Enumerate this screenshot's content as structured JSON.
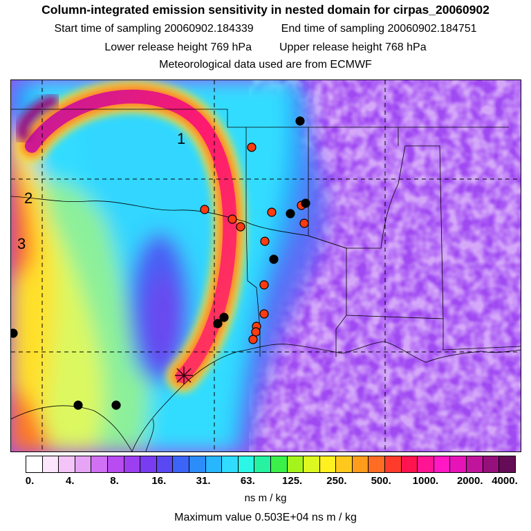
{
  "header": {
    "title": "Column-integrated emission sensitivity in nested domain for cirpas_20060902",
    "start_label": "Start time of sampling 20060902.184339",
    "end_label": "End time of sampling 20060902.184751",
    "lower_label": "Lower release height  769 hPa",
    "upper_label": "Upper release height  768 hPa",
    "met_label": "Meteorological data used are from ECMWF"
  },
  "map": {
    "labels": {
      "one": "1",
      "two": "2",
      "three": "3"
    },
    "colors": {
      "background_low": "#a44cf0",
      "plume_core": "#ff1a6e",
      "plume_edge": "#ffee00",
      "cyan_zone": "#30e8ff",
      "blue_trough": "#5a4cf2",
      "yellow_zone": "#e8ff60",
      "dot_red": "#ff3b10",
      "dot_black": "#000000"
    }
  },
  "colorbar": {
    "colors": [
      "#ffffff",
      "#fbe6fb",
      "#f3c4f7",
      "#e6a4f6",
      "#d070f2",
      "#b84cf0",
      "#9d3ef0",
      "#7a3cf0",
      "#5a48f2",
      "#3c64f6",
      "#2c8cfa",
      "#28b6fc",
      "#30dcff",
      "#2cf6e6",
      "#26f2a2",
      "#3cf04a",
      "#a4f41c",
      "#dcf820",
      "#fff020",
      "#ffc81c",
      "#ff9c1c",
      "#ff6c24",
      "#ff3c2c",
      "#ff1450",
      "#ff1494",
      "#ff18c4",
      "#e614b8",
      "#c0149c",
      "#96107c",
      "#640c56"
    ],
    "tick_labels": [
      "0.",
      "4.",
      "8.",
      "16.",
      "31.",
      "63.",
      "125.",
      "250.",
      "500.",
      "1000.",
      "2000.",
      "4000."
    ],
    "units": "ns m / kg"
  },
  "max_value_text": "Maximum value  0.503E+04 ns m / kg"
}
